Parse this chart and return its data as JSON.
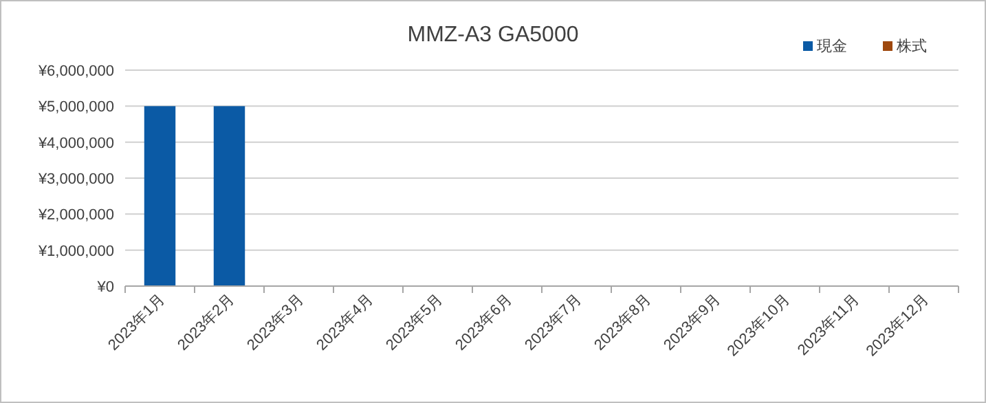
{
  "chart_data": {
    "type": "bar",
    "title": "MMZ-A3 GA5000",
    "stacked": true,
    "categories": [
      "2023年1月",
      "2023年2月",
      "2023年3月",
      "2023年4月",
      "2023年5月",
      "2023年6月",
      "2023年7月",
      "2023年8月",
      "2023年9月",
      "2023年10月",
      "2023年11月",
      "2023年12月"
    ],
    "series": [
      {
        "name": "現金",
        "color": "#0b5aa5",
        "values": [
          5000000,
          5000000,
          null,
          null,
          null,
          null,
          null,
          null,
          null,
          null,
          null,
          null
        ]
      },
      {
        "name": "株式",
        "color": "#9e480e",
        "values": [
          null,
          null,
          null,
          null,
          null,
          null,
          null,
          null,
          null,
          null,
          null,
          null
        ]
      }
    ],
    "ylim": [
      0,
      6000000
    ],
    "yticks": [
      {
        "value": 0,
        "label": "¥0"
      },
      {
        "value": 1000000,
        "label": "¥1,000,000"
      },
      {
        "value": 2000000,
        "label": "¥2,000,000"
      },
      {
        "value": 3000000,
        "label": "¥3,000,000"
      },
      {
        "value": 4000000,
        "label": "¥4,000,000"
      },
      {
        "value": 5000000,
        "label": "¥5,000,000"
      },
      {
        "value": 6000000,
        "label": "¥6,000,000"
      }
    ],
    "grid": "y",
    "legend": "top right"
  }
}
